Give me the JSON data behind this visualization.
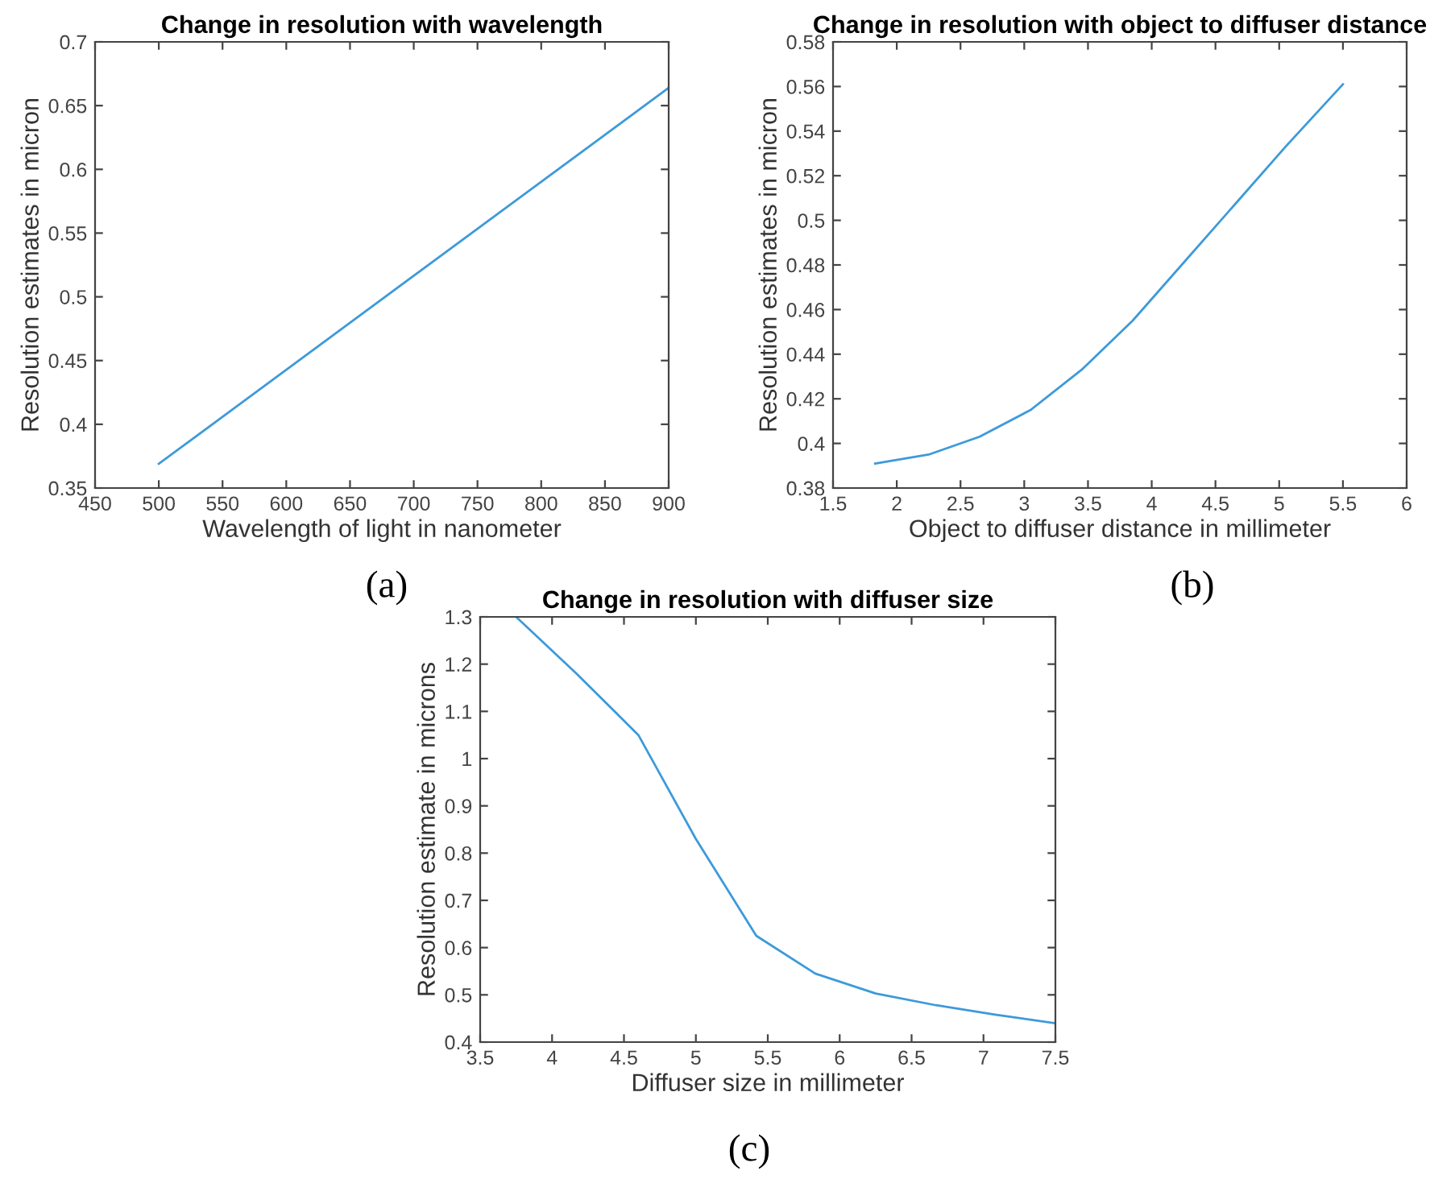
{
  "chart_data": [
    {
      "type": "line",
      "title": "Change in resolution with wavelength",
      "xlabel": "Wavelength of light in nanometer",
      "ylabel": "Resolution estimates in micron",
      "annotations": [
        "(a)"
      ],
      "series": [
        {
          "color": "#3d9ad9",
          "x": [
            500,
            900
          ],
          "values": [
            0.369,
            0.664
          ]
        }
      ],
      "xlim": [
        450,
        900
      ],
      "xticks": [
        450,
        500,
        550,
        600,
        650,
        700,
        750,
        800,
        850,
        900
      ],
      "ylim": [
        0.35,
        0.7
      ],
      "yticks": [
        0.35,
        0.4,
        0.45,
        0.5,
        0.55,
        0.6,
        0.65,
        0.7
      ],
      "grid": false
    },
    {
      "type": "line",
      "title": "Change in resolution with object to diffuser distance",
      "xlabel": "Object to diffuser distance in millimeter",
      "ylabel": "Resolution estimates in micron",
      "annotations": [
        "(b)"
      ],
      "series": [
        {
          "color": "#3d9ad9",
          "x": [
            1.83,
            2.25,
            2.65,
            3.05,
            3.45,
            3.85,
            4.25,
            4.65,
            5.05,
            5.5
          ],
          "values": [
            0.391,
            0.395,
            0.403,
            0.415,
            0.433,
            0.455,
            0.481,
            0.507,
            0.533,
            0.561
          ]
        }
      ],
      "xlim": [
        1.5,
        6
      ],
      "xticks": [
        1.5,
        2,
        2.5,
        3,
        3.5,
        4,
        4.5,
        5,
        5.5,
        6
      ],
      "ylim": [
        0.38,
        0.58
      ],
      "yticks": [
        0.38,
        0.4,
        0.42,
        0.44,
        0.46,
        0.48,
        0.5,
        0.52,
        0.54,
        0.56,
        0.58
      ],
      "grid": false
    },
    {
      "type": "line",
      "title": "Change in resolution with diffuser size",
      "xlabel": "Diffuser size in millimeter",
      "ylabel": "Resolution estimate in microns",
      "annotations": [
        "(c)"
      ],
      "series": [
        {
          "color": "#3d9ad9",
          "x": [
            3.75,
            4.17,
            4.6,
            5.0,
            5.42,
            5.83,
            6.25,
            6.67,
            7.08,
            7.5
          ],
          "values": [
            1.3,
            1.18,
            1.05,
            0.83,
            0.625,
            0.545,
            0.503,
            0.478,
            0.458,
            0.44
          ]
        }
      ],
      "xlim": [
        3.5,
        7.5
      ],
      "xticks": [
        3.5,
        4,
        4.5,
        5,
        5.5,
        6,
        6.5,
        7,
        7.5
      ],
      "ylim": [
        0.4,
        1.3
      ],
      "yticks": [
        0.4,
        0.5,
        0.6,
        0.7,
        0.8,
        0.9,
        1,
        1.1,
        1.2,
        1.3
      ],
      "grid": false
    }
  ]
}
